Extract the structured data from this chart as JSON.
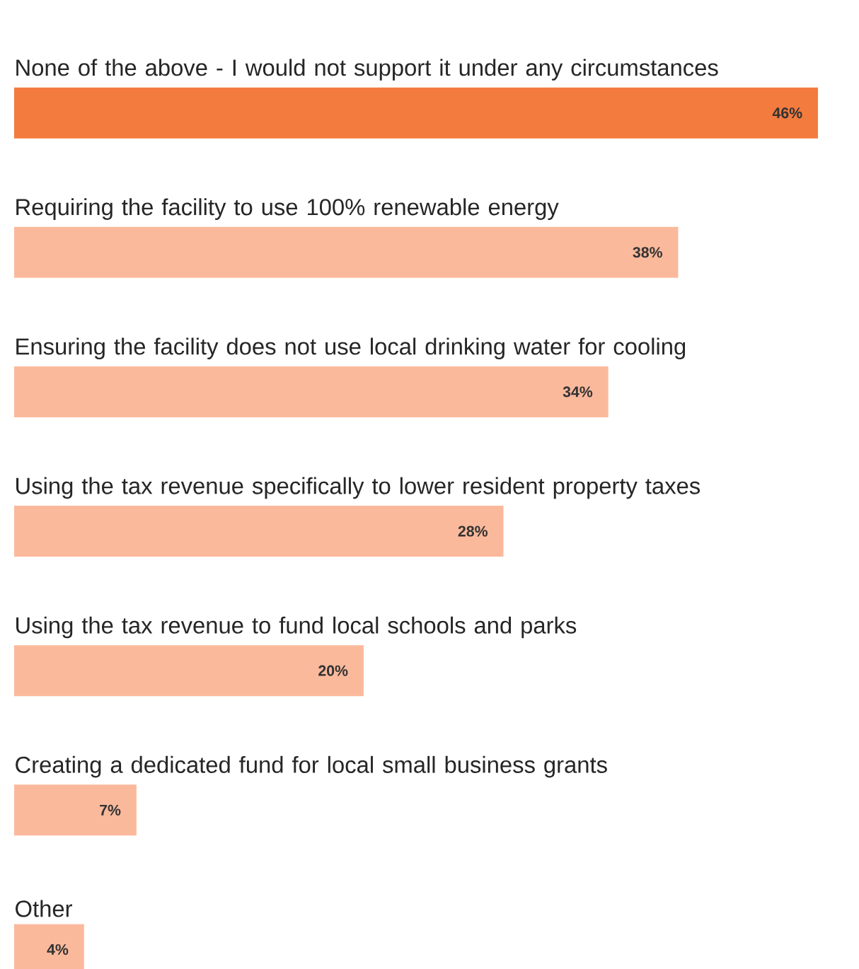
{
  "chart_data": {
    "type": "bar",
    "orientation": "horizontal",
    "categories": [
      "None of the above - I would not support it under any circumstances",
      "Requiring the facility to use 100% renewable energy",
      "Ensuring the facility does not use local drinking water for cooling",
      "Using the tax revenue specifically to lower resident property taxes",
      "Using the tax revenue to fund local schools and parks",
      "Creating a dedicated fund for local small business grants",
      "Other"
    ],
    "values": [
      46,
      38,
      34,
      28,
      20,
      7,
      4
    ],
    "value_labels": [
      "46%",
      "38%",
      "34%",
      "28%",
      "20%",
      "7%",
      "4%"
    ],
    "colors": [
      "#f47b3e",
      "#fbb99c",
      "#fbb99c",
      "#fbb99c",
      "#fbb99c",
      "#fbb99c",
      "#fbb99c"
    ]
  }
}
